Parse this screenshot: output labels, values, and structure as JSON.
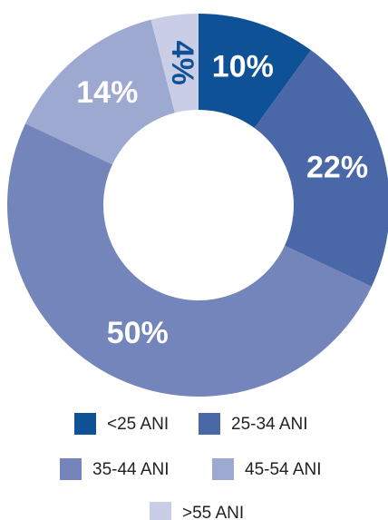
{
  "chart_data": {
    "type": "donut",
    "categories": [
      "<25 ANI",
      "25-34 ANI",
      "35-44 ANI",
      "45-54 ANI",
      ">55 ANI"
    ],
    "values": [
      10,
      22,
      50,
      14,
      4
    ],
    "value_labels": [
      "10%",
      "22%",
      "50%",
      "14%",
      "4%"
    ],
    "colors": [
      "#0e5196",
      "#4a68a7",
      "#7485bb",
      "#9ea9d1",
      "#c9cee6"
    ]
  }
}
